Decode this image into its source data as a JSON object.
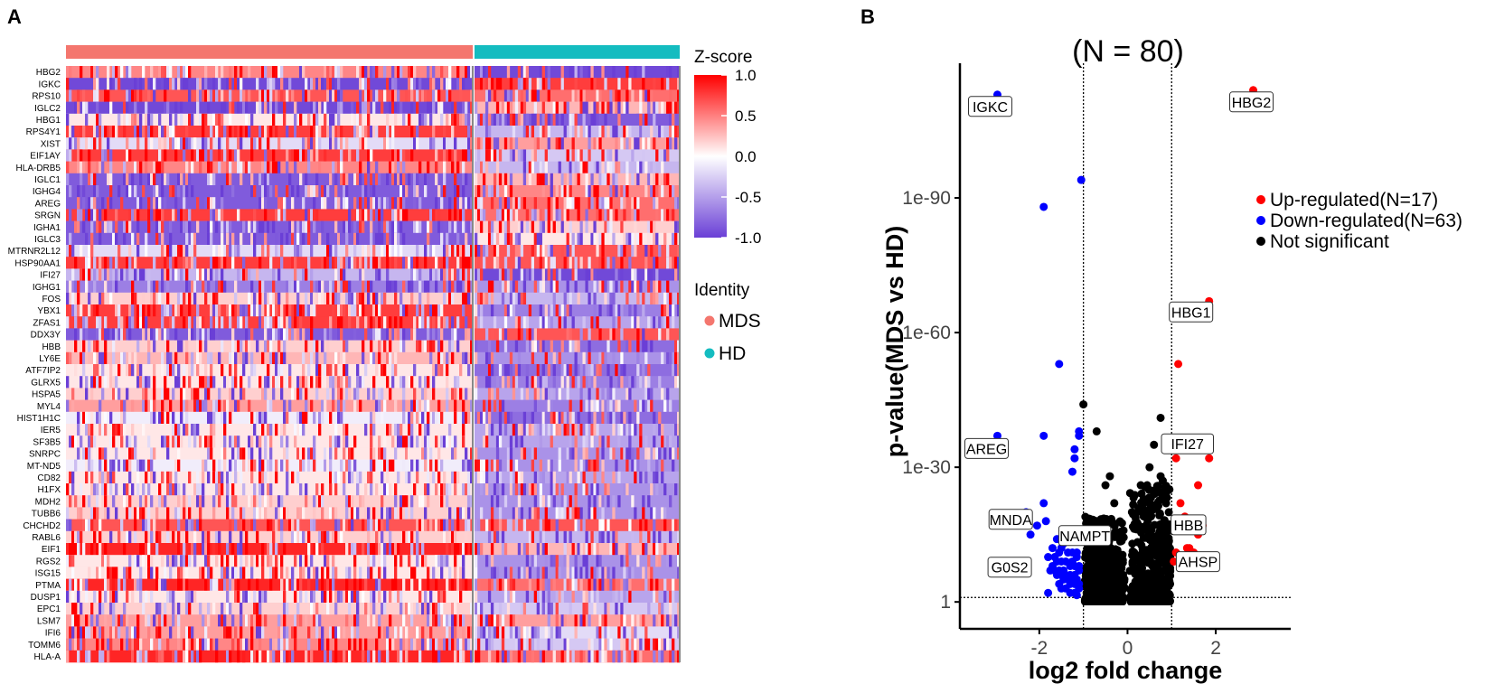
{
  "panels": {
    "a_label": "A",
    "b_label": "B"
  },
  "heatmap": {
    "genes": [
      "HBG2",
      "IGKC",
      "RPS10",
      "IGLC2",
      "HBG1",
      "RPS4Y1",
      "XIST",
      "EIF1AY",
      "HLA-DRB5",
      "IGLC1",
      "IGHG4",
      "AREG",
      "SRGN",
      "IGHA1",
      "IGLC3",
      "MTRNR2L12",
      "HSP90AA1",
      "IFI27",
      "IGHG1",
      "FOS",
      "YBX1",
      "ZFAS1",
      "DDX3Y",
      "HBB",
      "LY6E",
      "ATF7IP2",
      "GLRX5",
      "HSPA5",
      "MYL4",
      "HIST1H1C",
      "IER5",
      "SF3B5",
      "SNRPC",
      "MT-ND5",
      "CD82",
      "H1FX",
      "MDH2",
      "TUBB6",
      "CHCHD2",
      "RABL6",
      "EIF1",
      "RGS2",
      "ISG15",
      "PTMA",
      "DUSP1",
      "EPC1",
      "LSM7",
      "IFI6",
      "TOMM6",
      "HLA-A"
    ],
    "mds_bias": [
      0.5,
      -1,
      0.7,
      -1,
      0.1,
      0.8,
      -0.2,
      0.8,
      0.5,
      -0.9,
      -0.9,
      -0.9,
      0.8,
      -0.9,
      -0.9,
      -0.2,
      0.8,
      -0.4,
      -0.7,
      0.2,
      0.8,
      0.8,
      -0.9,
      0.2,
      0.3,
      0.1,
      0.1,
      0.2,
      0.4,
      -0.1,
      0.1,
      0.1,
      0.1,
      -0.1,
      0.1,
      0.1,
      0.2,
      0.2,
      0.7,
      0.2,
      0.9,
      0.1,
      0.1,
      0.9,
      0.1,
      0.2,
      0.4,
      0.4,
      0.5,
      0.9
    ],
    "hd_bias": [
      -1,
      0.8,
      0.6,
      0.3,
      -0.9,
      -0.4,
      0.4,
      -0.3,
      -0.4,
      0.3,
      0.5,
      0.6,
      0.6,
      0.2,
      0.1,
      0.7,
      0.7,
      -1,
      -0.6,
      -0.4,
      -0.7,
      -0.5,
      0.7,
      -0.8,
      -0.6,
      -0.8,
      -0.7,
      -0.5,
      -0.7,
      -0.8,
      -0.5,
      -0.5,
      -0.6,
      -0.6,
      -0.5,
      -0.6,
      -0.6,
      -0.6,
      0.7,
      -0.4,
      0.3,
      -0.6,
      -0.6,
      0.6,
      -0.5,
      -0.3,
      0.4,
      -0.2,
      -0.3,
      0.6
    ],
    "groups": [
      {
        "name": "MDS",
        "color": "#f4766e"
      },
      {
        "name": "HD",
        "color": "#14bcc0"
      }
    ],
    "colorbar": {
      "title": "Z-score",
      "ticks": [
        "1.0",
        "0.5",
        "0.0",
        "-0.5",
        "-1.0"
      ],
      "high_color": "#ff0000",
      "mid_color": "#ffffff",
      "low_color": "#6a3fd6"
    },
    "identity_title": "Identity"
  },
  "chart_data": {
    "type": "scatter",
    "title": "(N = 80)",
    "xlabel": "log2 fold change",
    "ylabel": "p-value(MDS vs HD)",
    "x_ticks": [
      "-2",
      "0",
      "2"
    ],
    "x_tick_values": [
      -2,
      0,
      2
    ],
    "y_ticks": [
      "1",
      "1e-30",
      "1e-60",
      "1e-90"
    ],
    "y_tick_values": [
      0,
      30,
      60,
      90
    ],
    "xlim": [
      -3.8,
      3.7
    ],
    "ylim": [
      -6,
      120
    ],
    "thresholds": {
      "x": [
        -1,
        1
      ],
      "y": 1
    },
    "legend": [
      {
        "label": "Up-regulated(N=17)",
        "color": "#ff0000"
      },
      {
        "label": "Down-regulated(N=63)",
        "color": "#0000ff"
      },
      {
        "label": "Not significant",
        "color": "#000000"
      }
    ],
    "series": [
      {
        "name": "Up-regulated",
        "color": "#ff0000",
        "points": [
          [
            2.85,
            114
          ],
          [
            1.85,
            67
          ],
          [
            1.15,
            53
          ],
          [
            1.1,
            32
          ],
          [
            1.85,
            32
          ],
          [
            1.6,
            26
          ],
          [
            1.2,
            22
          ],
          [
            1.3,
            19
          ],
          [
            1.7,
            17
          ],
          [
            1.35,
            12
          ],
          [
            1.5,
            11
          ],
          [
            1.2,
            10
          ],
          [
            1.3,
            10
          ],
          [
            1.1,
            11
          ],
          [
            1.05,
            9
          ],
          [
            1.4,
            12
          ],
          [
            1.6,
            15
          ]
        ]
      },
      {
        "name": "Down-regulated",
        "color": "#0000ff",
        "points": [
          [
            -2.95,
            113
          ],
          [
            -1.05,
            94
          ],
          [
            -1.9,
            88
          ],
          [
            -1.55,
            53
          ],
          [
            -2.95,
            37
          ],
          [
            -1.9,
            37
          ],
          [
            -1.1,
            38
          ],
          [
            -1.1,
            37
          ],
          [
            -1.2,
            34
          ],
          [
            -1.2,
            32
          ],
          [
            -1.25,
            29
          ],
          [
            -1.9,
            22
          ],
          [
            -2.3,
            20
          ],
          [
            -1.85,
            18
          ],
          [
            -2.05,
            17
          ],
          [
            -2.2,
            15
          ],
          [
            -1.1,
            16
          ],
          [
            -1.2,
            15
          ],
          [
            -1.3,
            14
          ],
          [
            -1.6,
            14
          ],
          [
            -1.45,
            13
          ],
          [
            -1.5,
            12
          ],
          [
            -1.7,
            12
          ],
          [
            -1.15,
            11
          ],
          [
            -1.25,
            11
          ],
          [
            -1.35,
            11
          ],
          [
            -1.55,
            11
          ],
          [
            -1.65,
            10
          ],
          [
            -1.8,
            10
          ],
          [
            -1.15,
            10
          ],
          [
            -1.25,
            9
          ],
          [
            -1.4,
            9
          ],
          [
            -1.5,
            9
          ],
          [
            -1.6,
            9
          ],
          [
            -1.7,
            8
          ],
          [
            -1.1,
            8
          ],
          [
            -1.2,
            8
          ],
          [
            -1.3,
            8
          ],
          [
            -1.45,
            7
          ],
          [
            -1.55,
            7
          ],
          [
            -1.65,
            7
          ],
          [
            -1.75,
            7
          ],
          [
            -1.1,
            7
          ],
          [
            -1.2,
            6
          ],
          [
            -1.3,
            6
          ],
          [
            -1.4,
            6
          ],
          [
            -1.5,
            6
          ],
          [
            -1.6,
            6
          ],
          [
            -1.15,
            5
          ],
          [
            -1.25,
            5
          ],
          [
            -1.35,
            5
          ],
          [
            -1.45,
            5
          ],
          [
            -1.55,
            4
          ],
          [
            -1.1,
            4
          ],
          [
            -1.2,
            4
          ],
          [
            -1.3,
            4
          ],
          [
            -1.4,
            3
          ],
          [
            -1.5,
            3
          ],
          [
            -1.1,
            3
          ],
          [
            -1.2,
            2
          ],
          [
            -1.3,
            2
          ],
          [
            -1.8,
            2
          ],
          [
            -1.15,
            1.5
          ]
        ]
      }
    ],
    "not_significant_sample": [
      [
        -1,
        44
      ],
      [
        -0.7,
        38
      ],
      [
        -0.4,
        28
      ],
      [
        0.75,
        41
      ],
      [
        0.75,
        28
      ],
      [
        -0.5,
        26
      ],
      [
        0.3,
        26
      ],
      [
        0.5,
        30
      ],
      [
        0.6,
        35
      ],
      [
        -0.3,
        22
      ],
      [
        0.1,
        20
      ],
      [
        0.6,
        24
      ],
      [
        0.8,
        27
      ]
    ],
    "labels": [
      {
        "text": "IGKC",
        "x": -2.95,
        "y": 113
      },
      {
        "text": "HBG2",
        "x": 2.85,
        "y": 114
      },
      {
        "text": "HBG1",
        "x": 1.85,
        "y": 67
      },
      {
        "text": "AREG",
        "x": -2.95,
        "y": 37
      },
      {
        "text": "IFI27",
        "x": 1.85,
        "y": 32
      },
      {
        "text": "HBB",
        "x": 1.3,
        "y": 22
      },
      {
        "text": "MNDA",
        "x": -2.3,
        "y": 20
      },
      {
        "text": "NAMPT",
        "x": -1.85,
        "y": 18
      },
      {
        "text": "G0S2",
        "x": -2.2,
        "y": 15
      },
      {
        "text": "AHSP",
        "x": 1.7,
        "y": 12
      }
    ]
  }
}
